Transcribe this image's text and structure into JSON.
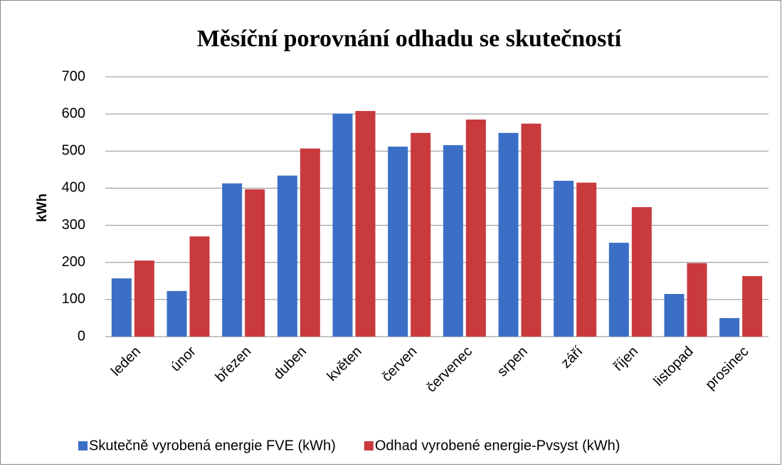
{
  "chart_data": {
    "type": "bar",
    "title": "Měsíční porovnání odhadu se skutečností",
    "y_label": "kWh",
    "categories": [
      "leden",
      "únor",
      "březen",
      "duben",
      "květen",
      "červen",
      "červenec",
      "srpen",
      "září",
      "říjen",
      "listopad",
      "prosinec"
    ],
    "series": [
      {
        "name": "Skutečně vyrobená energie FVE (kWh)",
        "color": "#3b6fc6",
        "values": [
          157,
          123,
          413,
          434,
          601,
          512,
          516,
          549,
          420,
          253,
          115,
          50
        ]
      },
      {
        "name": "Odhad vyrobené energie-Pvsyst (kWh)",
        "color": "#c93a3c",
        "values": [
          205,
          270,
          397,
          507,
          608,
          549,
          585,
          574,
          415,
          349,
          198,
          163
        ]
      }
    ],
    "ylim": [
      0,
      700
    ],
    "yticks": [
      0,
      100,
      200,
      300,
      400,
      500,
      600,
      700
    ],
    "grid": true,
    "legend": "bottom"
  }
}
